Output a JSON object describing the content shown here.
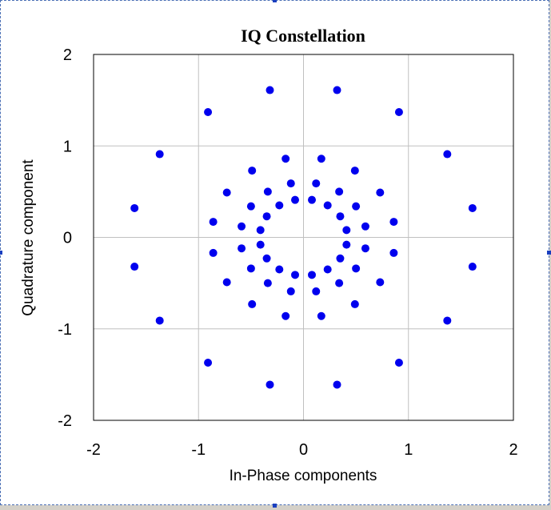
{
  "chart_data": {
    "type": "scatter",
    "title": "IQ Constellation",
    "xlabel": "In-Phase components",
    "ylabel": "Quadrature component",
    "xlim": [
      -2,
      2
    ],
    "ylim": [
      -2,
      2
    ],
    "xticks": [
      "-2",
      "-1",
      "0",
      "1",
      "2"
    ],
    "yticks": [
      "2",
      "1",
      "0",
      "-1",
      "-2"
    ],
    "grid": true,
    "legend": "none",
    "marker_color": "#0000ee",
    "series": [
      {
        "points": [
          [
            0.32,
            1.61
          ],
          [
            -0.32,
            1.61
          ],
          [
            0.91,
            1.37
          ],
          [
            -0.91,
            1.37
          ],
          [
            1.37,
            0.91
          ],
          [
            -1.37,
            0.91
          ],
          [
            1.61,
            0.32
          ],
          [
            -1.61,
            0.32
          ],
          [
            1.61,
            -0.32
          ],
          [
            -1.61,
            -0.32
          ],
          [
            1.37,
            -0.91
          ],
          [
            -1.37,
            -0.91
          ],
          [
            0.91,
            -1.37
          ],
          [
            -0.91,
            -1.37
          ],
          [
            0.32,
            -1.61
          ],
          [
            -0.32,
            -1.61
          ],
          [
            0.17,
            0.86
          ],
          [
            -0.17,
            0.86
          ],
          [
            0.49,
            0.73
          ],
          [
            -0.49,
            0.73
          ],
          [
            0.73,
            0.49
          ],
          [
            -0.73,
            0.49
          ],
          [
            0.86,
            0.17
          ],
          [
            -0.86,
            0.17
          ],
          [
            0.86,
            -0.17
          ],
          [
            -0.86,
            -0.17
          ],
          [
            0.73,
            -0.49
          ],
          [
            -0.73,
            -0.49
          ],
          [
            0.49,
            -0.73
          ],
          [
            -0.49,
            -0.73
          ],
          [
            0.17,
            -0.86
          ],
          [
            -0.17,
            -0.86
          ],
          [
            0.12,
            0.59
          ],
          [
            -0.12,
            0.59
          ],
          [
            0.34,
            0.5
          ],
          [
            -0.34,
            0.5
          ],
          [
            0.5,
            0.34
          ],
          [
            -0.5,
            0.34
          ],
          [
            0.59,
            0.12
          ],
          [
            -0.59,
            0.12
          ],
          [
            0.59,
            -0.12
          ],
          [
            -0.59,
            -0.12
          ],
          [
            0.5,
            -0.34
          ],
          [
            -0.5,
            -0.34
          ],
          [
            0.34,
            -0.5
          ],
          [
            -0.34,
            -0.5
          ],
          [
            0.12,
            -0.59
          ],
          [
            -0.12,
            -0.59
          ],
          [
            0.08,
            0.41
          ],
          [
            -0.08,
            0.41
          ],
          [
            0.23,
            0.35
          ],
          [
            -0.23,
            0.35
          ],
          [
            0.35,
            0.23
          ],
          [
            -0.35,
            0.23
          ],
          [
            0.41,
            0.08
          ],
          [
            -0.41,
            0.08
          ],
          [
            0.41,
            -0.08
          ],
          [
            -0.41,
            -0.08
          ],
          [
            0.35,
            -0.23
          ],
          [
            -0.35,
            -0.23
          ],
          [
            0.23,
            -0.35
          ],
          [
            -0.23,
            -0.35
          ],
          [
            0.08,
            -0.41
          ],
          [
            -0.08,
            -0.41
          ]
        ]
      }
    ]
  }
}
